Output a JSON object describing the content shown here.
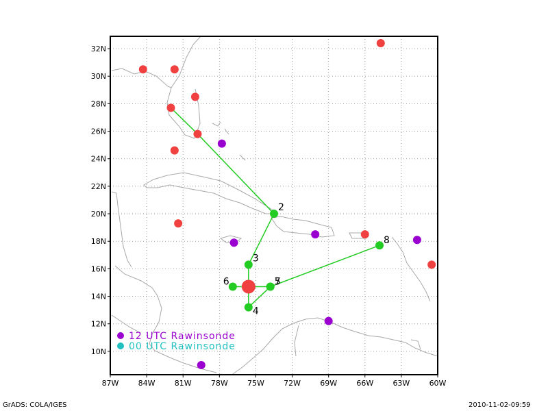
{
  "footer": {
    "left": "GrADS: COLA/IGES",
    "right": "2010-11-02-09:59"
  },
  "map": {
    "lon_range": [
      -87,
      -60
    ],
    "lat_range": [
      8.3,
      32.9
    ],
    "grid": true,
    "x_ticks": [
      {
        "lon": -87,
        "label": "87W"
      },
      {
        "lon": -84,
        "label": "84W"
      },
      {
        "lon": -81,
        "label": "81W"
      },
      {
        "lon": -78,
        "label": "78W"
      },
      {
        "lon": -75,
        "label": "75W"
      },
      {
        "lon": -72,
        "label": "72W"
      },
      {
        "lon": -69,
        "label": "69W"
      },
      {
        "lon": -66,
        "label": "66W"
      },
      {
        "lon": -63,
        "label": "63W"
      },
      {
        "lon": -60,
        "label": "60W"
      }
    ],
    "y_ticks": [
      {
        "lat": 10,
        "label": "10N"
      },
      {
        "lat": 12,
        "label": "12N"
      },
      {
        "lat": 14,
        "label": "14N"
      },
      {
        "lat": 16,
        "label": "16N"
      },
      {
        "lat": 18,
        "label": "18N"
      },
      {
        "lat": 20,
        "label": "20N"
      },
      {
        "lat": 22,
        "label": "22N"
      },
      {
        "lat": 24,
        "label": "24N"
      },
      {
        "lat": 26,
        "label": "26N"
      },
      {
        "lat": 28,
        "label": "28N"
      },
      {
        "lat": 30,
        "label": "30N"
      },
      {
        "lat": 32,
        "label": "32N"
      }
    ],
    "colors": {
      "obs_12utc": "#9a00d0",
      "obs_00utc": "#f04040",
      "track": "#22cc22",
      "legend_12utc": "#9a00d0",
      "legend_00utc": "#20c0c0",
      "coast": "#a8a8a8"
    },
    "legend": {
      "placement": "bottom-left",
      "items": [
        {
          "label": "12 UTC Rawinsonde",
          "color": "#9a00d0"
        },
        {
          "label": "00 UTC Rawinsonde",
          "color": "#20c0c0"
        }
      ]
    },
    "stations_12utc": [
      {
        "lon": -77.8,
        "lat": 25.1
      },
      {
        "lon": -76.8,
        "lat": 17.9
      },
      {
        "lon": -70.1,
        "lat": 18.5
      },
      {
        "lon": -69.0,
        "lat": 12.2
      },
      {
        "lon": -61.7,
        "lat": 18.1
      },
      {
        "lon": -79.5,
        "lat": 9.0
      }
    ],
    "stations_00utc": [
      {
        "lon": -84.3,
        "lat": 30.5
      },
      {
        "lon": -81.7,
        "lat": 30.5
      },
      {
        "lon": -80.0,
        "lat": 28.5
      },
      {
        "lon": -82.0,
        "lat": 27.7
      },
      {
        "lon": -79.8,
        "lat": 25.8
      },
      {
        "lon": -81.7,
        "lat": 24.6
      },
      {
        "lon": -81.4,
        "lat": 19.3
      },
      {
        "lon": -64.7,
        "lat": 32.4
      },
      {
        "lon": -66.0,
        "lat": 18.5
      },
      {
        "lon": -60.5,
        "lat": 16.3
      }
    ],
    "storm_position": {
      "lon": -75.6,
      "lat": 14.7
    },
    "track": [
      {
        "label": "",
        "lon": -82.0,
        "lat": 27.7
      },
      {
        "label": "",
        "lon": -79.8,
        "lat": 25.8
      },
      {
        "label": "2",
        "lon": -73.5,
        "lat": 20.0
      },
      {
        "label": "3",
        "lon": -75.6,
        "lat": 16.3
      },
      {
        "label": "4",
        "lon": -75.6,
        "lat": 13.2
      },
      {
        "label": "5",
        "lon": -73.8,
        "lat": 14.7
      },
      {
        "label": "6",
        "lon": -76.9,
        "lat": 14.7
      },
      {
        "label": "7",
        "lon": -73.8,
        "lat": 14.7
      },
      {
        "label": "8",
        "lon": -64.8,
        "lat": 17.7
      }
    ]
  }
}
